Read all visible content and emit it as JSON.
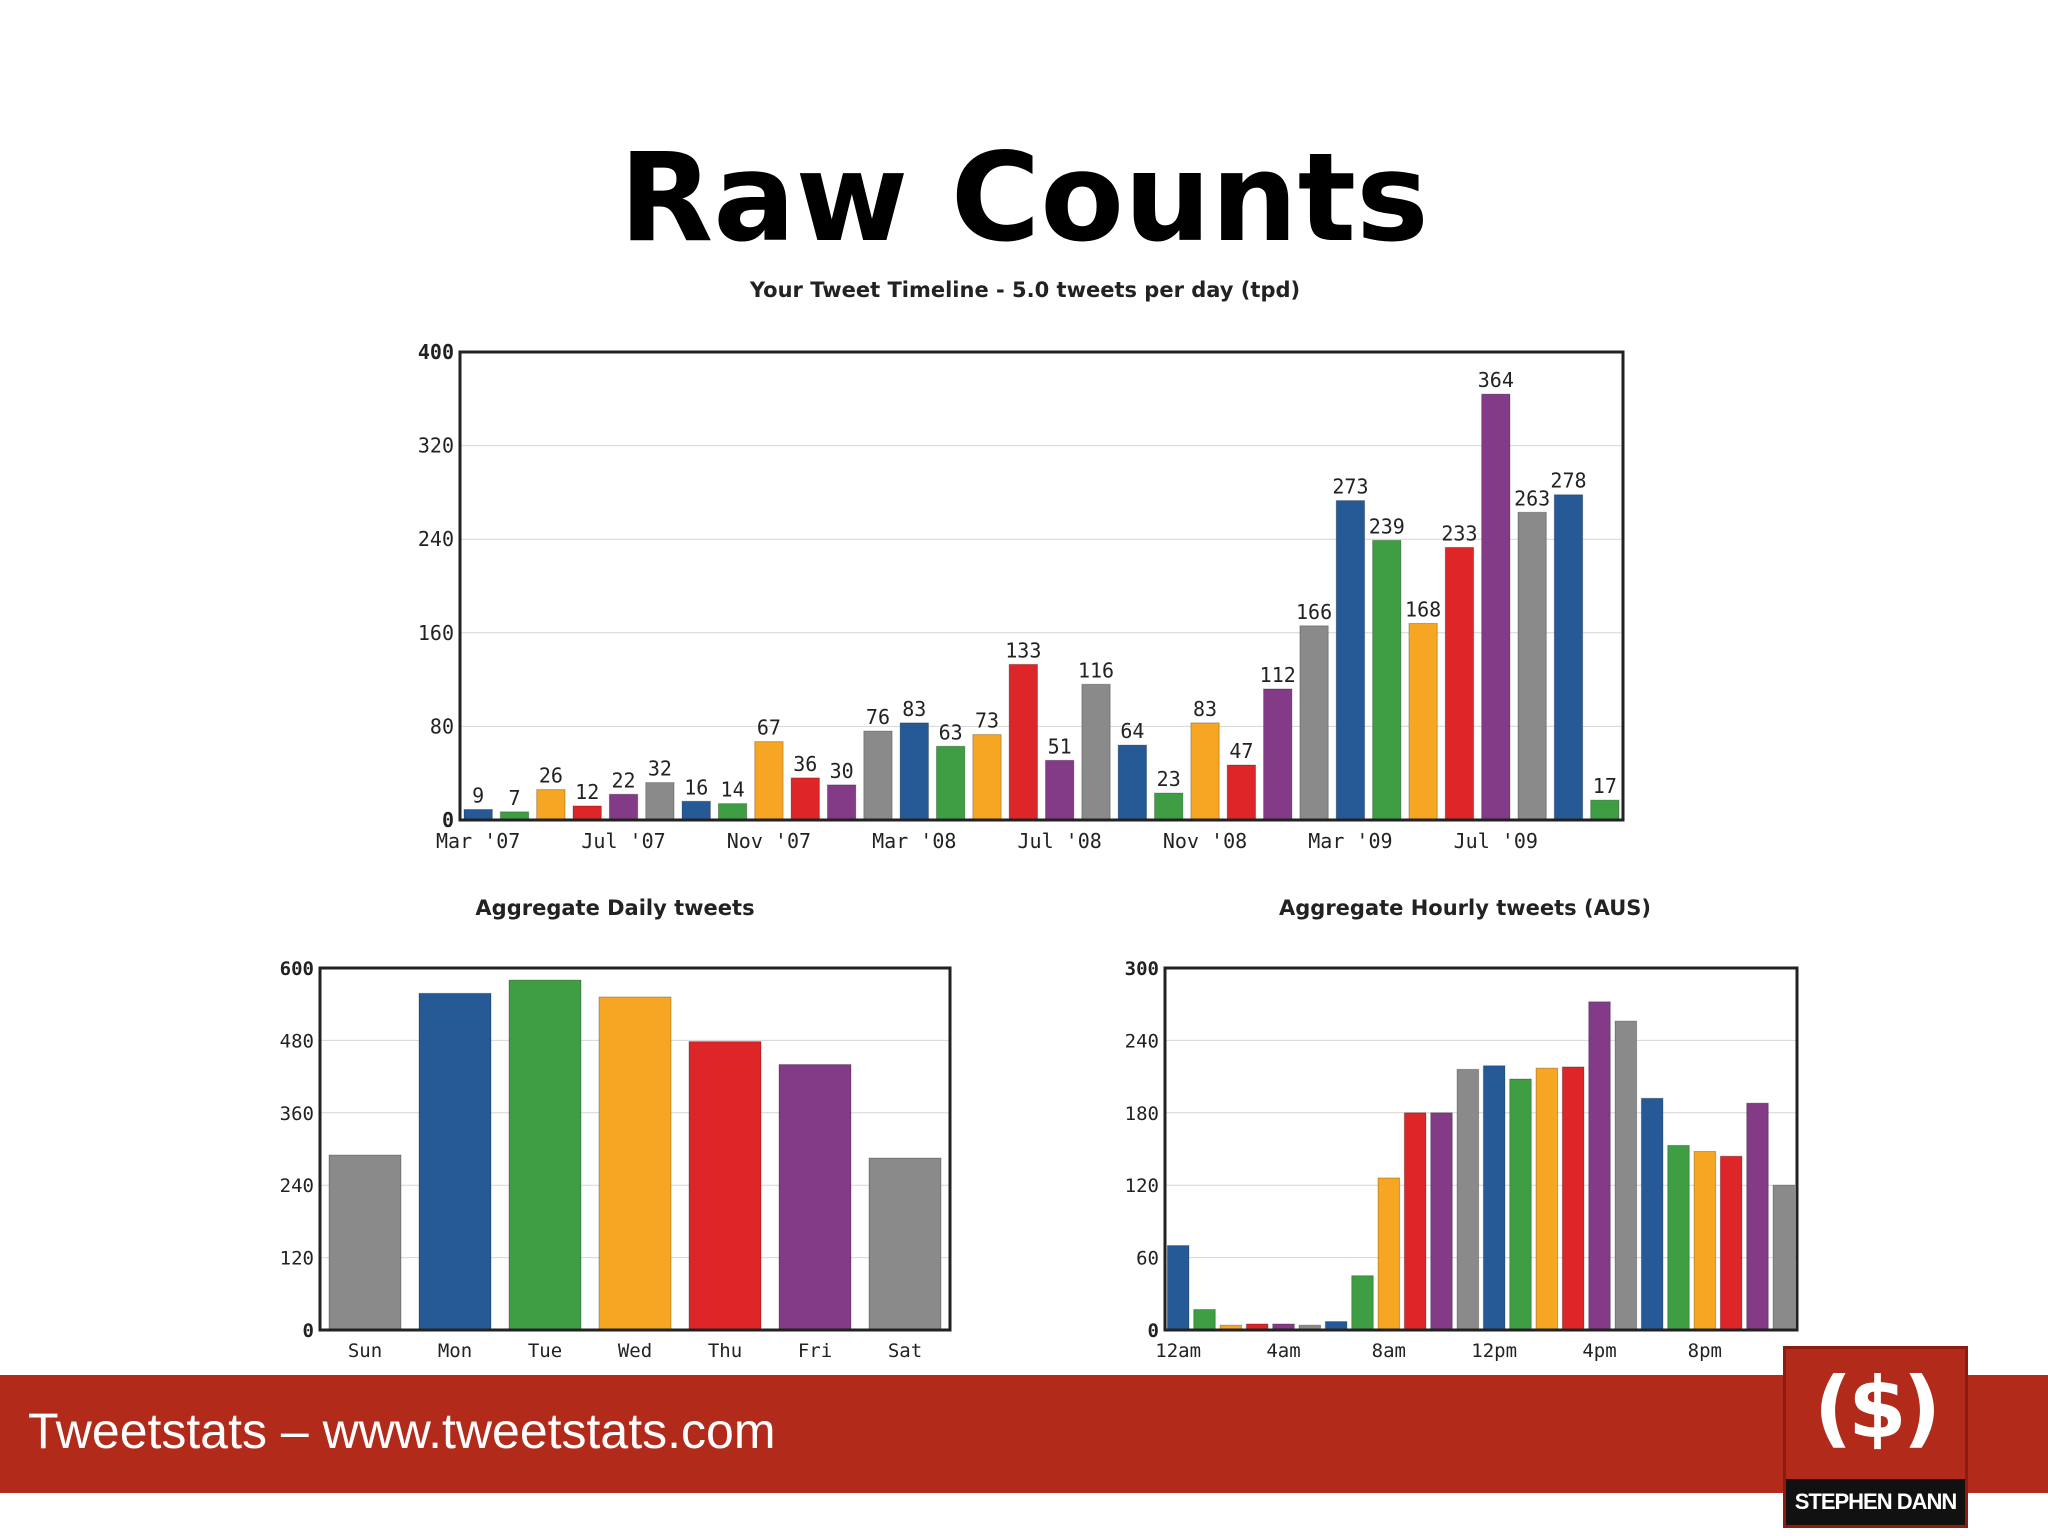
{
  "slide": {
    "title": "Raw Counts",
    "footer": "Tweetstats – www.tweetstats.com",
    "logo": {
      "symbol": "($)",
      "text": "STEPHEN DANN"
    }
  },
  "colors": [
    "#255a96",
    "#3f9e44",
    "#f6a623",
    "#de2527",
    "#843b87",
    "#8a8a8a"
  ],
  "chart_data": [
    {
      "id": "timeline",
      "type": "bar",
      "title": "Your Tweet Timeline - 5.0 tweets per day (tpd)",
      "ylim": [
        0,
        400
      ],
      "yticks": [
        0,
        80,
        160,
        240,
        320,
        400
      ],
      "grid": true,
      "data_labels": true,
      "categories": [
        "Mar '07",
        "Apr '07",
        "May '07",
        "Jun '07",
        "Jul '07",
        "Aug '07",
        "Sep '07",
        "Oct '07",
        "Nov '07",
        "Dec '07",
        "Jan '08",
        "Feb '08",
        "Mar '08",
        "Apr '08",
        "May '08",
        "Jun '08",
        "Jul '08",
        "Aug '08",
        "Sep '08",
        "Oct '08",
        "Nov '08",
        "Dec '08",
        "Jan '09",
        "Feb '09",
        "Mar '09",
        "Apr '09",
        "May '09",
        "Jun '09",
        "Jul '09",
        "Aug '09",
        "Sep '09",
        "Oct '09"
      ],
      "xtick_labels": [
        "Mar '07",
        "Jul '07",
        "Nov '07",
        "Mar '08",
        "Jul '08",
        "Nov '08",
        "Mar '09",
        "Jul '09"
      ],
      "values": [
        9,
        7,
        26,
        12,
        22,
        32,
        16,
        14,
        67,
        36,
        30,
        76,
        83,
        63,
        73,
        133,
        51,
        116,
        64,
        23,
        83,
        47,
        112,
        166,
        273,
        239,
        168,
        233,
        364,
        263,
        278,
        17
      ],
      "bar_colors": [
        "#255a96",
        "#3f9e44",
        "#f6a623",
        "#de2527",
        "#843b87",
        "#8a8a8a",
        "#255a96",
        "#3f9e44",
        "#f6a623",
        "#de2527",
        "#843b87",
        "#8a8a8a",
        "#255a96",
        "#3f9e44",
        "#f6a623",
        "#de2527",
        "#843b87",
        "#8a8a8a",
        "#255a96",
        "#3f9e44",
        "#f6a623",
        "#de2527",
        "#843b87",
        "#8a8a8a",
        "#255a96",
        "#3f9e44",
        "#f6a623",
        "#de2527",
        "#843b87",
        "#8a8a8a",
        "#255a96",
        "#3f9e44"
      ]
    },
    {
      "id": "daily",
      "type": "bar",
      "title": "Aggregate Daily tweets",
      "ylim": [
        0,
        600
      ],
      "yticks": [
        0,
        120,
        240,
        360,
        480,
        600
      ],
      "grid": true,
      "categories": [
        "Sun",
        "Mon",
        "Tue",
        "Wed",
        "Thu",
        "Fri",
        "Sat"
      ],
      "xtick_labels": [
        "Sun",
        "Mon",
        "Tue",
        "Wed",
        "Thu",
        "Fri",
        "Sat"
      ],
      "values": [
        290,
        558,
        580,
        552,
        478,
        440,
        285
      ],
      "bar_colors": [
        "#8a8a8a",
        "#255a96",
        "#3f9e44",
        "#f6a623",
        "#de2527",
        "#843b87",
        "#8a8a8a"
      ]
    },
    {
      "id": "hourly",
      "type": "bar",
      "title": "Aggregate Hourly tweets (AUS)",
      "ylim": [
        0,
        300
      ],
      "yticks": [
        0,
        60,
        120,
        180,
        240,
        300
      ],
      "grid": true,
      "categories": [
        "12am",
        "1am",
        "2am",
        "3am",
        "4am",
        "5am",
        "6am",
        "7am",
        "8am",
        "9am",
        "10am",
        "11am",
        "12pm",
        "1pm",
        "2pm",
        "3pm",
        "4pm",
        "5pm",
        "6pm",
        "7pm",
        "8pm",
        "9pm",
        "10pm",
        "11pm"
      ],
      "xtick_labels": [
        "12am",
        "4am",
        "8am",
        "12pm",
        "4pm",
        "8pm"
      ],
      "values": [
        70,
        17,
        4,
        5,
        5,
        4,
        7,
        45,
        126,
        180,
        180,
        216,
        219,
        208,
        217,
        218,
        272,
        256,
        192,
        153,
        148,
        144,
        188,
        120
      ],
      "bar_colors": [
        "#255a96",
        "#3f9e44",
        "#f6a623",
        "#de2527",
        "#843b87",
        "#8a8a8a",
        "#255a96",
        "#3f9e44",
        "#f6a623",
        "#de2527",
        "#843b87",
        "#8a8a8a",
        "#255a96",
        "#3f9e44",
        "#f6a623",
        "#de2527",
        "#843b87",
        "#8a8a8a",
        "#255a96",
        "#3f9e44",
        "#f6a623",
        "#de2527",
        "#843b87",
        "#8a8a8a"
      ]
    }
  ]
}
